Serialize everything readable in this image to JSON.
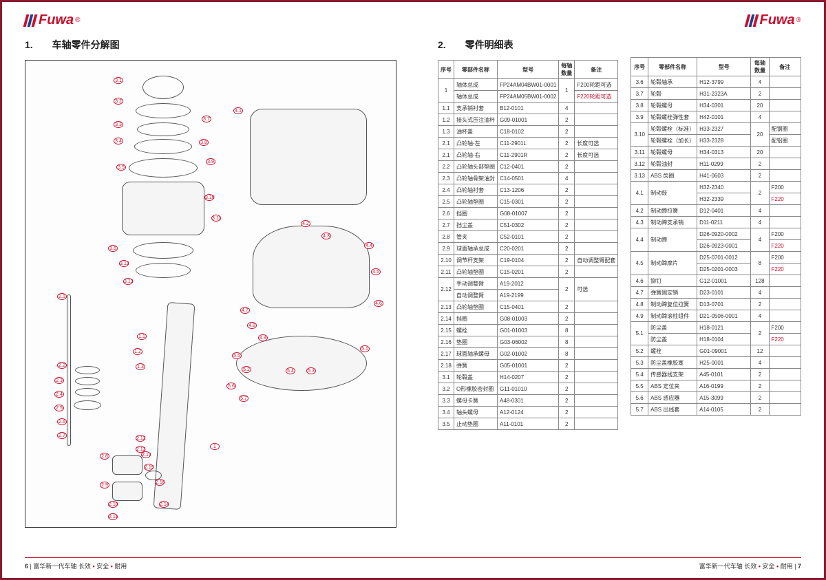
{
  "brand": {
    "name": "Fuwa",
    "reg": "®"
  },
  "section1": {
    "num": "1.",
    "title": "车轴零件分解图"
  },
  "section2": {
    "num": "2.",
    "title": "零件明细表"
  },
  "table_headers": {
    "seq": "序号",
    "name": "零部件名称",
    "model": "型号",
    "qty_l1": "每轴",
    "qty_l2": "数量",
    "remark": "备注"
  },
  "callouts": [
    "3.1",
    "3.2",
    "3.3",
    "3.4",
    "3.5",
    "3.6",
    "3.7",
    "3.8",
    "3.9",
    "3.10",
    "3.11",
    "3.12",
    "3.13",
    "4.1",
    "4.2",
    "4.3",
    "4.4",
    "4.5",
    "4.6",
    "4.7",
    "4.8",
    "4.9",
    "5.1",
    "5.2",
    "5.3",
    "5.4",
    "5.5",
    "5.6",
    "5.7",
    "2.1",
    "2.2",
    "2.3",
    "2.4",
    "2.5",
    "2.6",
    "2.7",
    "2.8",
    "2.9",
    "2.10",
    "2.11",
    "2.12",
    "2.13",
    "2.14",
    "2.15",
    "2.16",
    "2.17",
    "1",
    "1.1",
    "1.2",
    "1.3"
  ],
  "left_table": [
    {
      "s": "1",
      "n": "轴体总成",
      "m": "FP24AM04BW01-0001",
      "q": "1",
      "r": "F200轮距可选",
      "rowspan_s": 2,
      "rowspan_q": 2
    },
    {
      "n": "轴体总成",
      "m": "FP24AM05BW01-0002",
      "r": "F220轮距可选",
      "rcolor": true
    },
    {
      "s": "1.1",
      "n": "支承销衬套",
      "m": "B12-0101",
      "q": "4",
      "r": ""
    },
    {
      "s": "1.2",
      "n": "接头式压注油杯",
      "m": "G09-01001",
      "q": "2",
      "r": ""
    },
    {
      "s": "1.3",
      "n": "油杯盖",
      "m": "C18-0102",
      "q": "2",
      "r": ""
    },
    {
      "s": "2.1",
      "n": "凸轮轴-左",
      "m": "C11-2901L",
      "q": "2",
      "r": "长度可选"
    },
    {
      "s": "2.1",
      "n": "凸轮轴-右",
      "m": "C11-2901R",
      "q": "2",
      "r": "长度可选"
    },
    {
      "s": "2.2",
      "n": "凸轮轴头部垫圈",
      "m": "C12-0401",
      "q": "2",
      "r": ""
    },
    {
      "s": "2.3",
      "n": "凸轮轴骨架油封",
      "m": "C14-0501",
      "q": "4",
      "r": ""
    },
    {
      "s": "2.4",
      "n": "凸轮轴衬套",
      "m": "C13-1206",
      "q": "2",
      "r": ""
    },
    {
      "s": "2.5",
      "n": "凸轮轴垫圈",
      "m": "C15-0301",
      "q": "2",
      "r": ""
    },
    {
      "s": "2.6",
      "n": "挡圈",
      "m": "G08-01007",
      "q": "2",
      "r": ""
    },
    {
      "s": "2.7",
      "n": "挡尘盖",
      "m": "C51-0302",
      "q": "2",
      "r": ""
    },
    {
      "s": "2.8",
      "n": "管夹",
      "m": "C52-0101",
      "q": "2",
      "r": ""
    },
    {
      "s": "2.9",
      "n": "球面轴承总成",
      "m": "C20-0201",
      "q": "2",
      "r": ""
    },
    {
      "s": "2.10",
      "n": "调节杆支架",
      "m": "C19-0104",
      "q": "2",
      "r": "自动调整臂配套"
    },
    {
      "s": "2.11",
      "n": "凸轮轴垫圈",
      "m": "C15-0201",
      "q": "2",
      "r": ""
    },
    {
      "s": "2.12",
      "n": "手动调整臂",
      "m": "A19-2012",
      "q": "2",
      "r": "可选",
      "rowspan_s": 2,
      "rowspan_q": 2,
      "rowspan_r": 2
    },
    {
      "n": "自动调整臂",
      "m": "A19-2199"
    },
    {
      "s": "2.13",
      "n": "凸轮轴垫圈",
      "m": "C15-0401",
      "q": "2",
      "r": ""
    },
    {
      "s": "2.14",
      "n": "挡圈",
      "m": "G08-01003",
      "q": "2",
      "r": ""
    },
    {
      "s": "2.15",
      "n": "螺栓",
      "m": "G01-01003",
      "q": "8",
      "r": ""
    },
    {
      "s": "2.16",
      "n": "垫圈",
      "m": "G03-06002",
      "q": "8",
      "r": ""
    },
    {
      "s": "2.17",
      "n": "球面轴承螺母",
      "m": "G02-01002",
      "q": "8",
      "r": ""
    },
    {
      "s": "2.18",
      "n": "弹簧",
      "m": "G05-01001",
      "q": "2",
      "r": ""
    },
    {
      "s": "3.1",
      "n": "轮毂盖",
      "m": "H14-0207",
      "q": "2",
      "r": ""
    },
    {
      "s": "3.2",
      "n": "O形橡胶密封圈",
      "m": "G11-01010",
      "q": "2",
      "r": ""
    },
    {
      "s": "3.3",
      "n": "螺母卡簧",
      "m": "A48-0301",
      "q": "2",
      "r": ""
    },
    {
      "s": "3.4",
      "n": "轴头螺母",
      "m": "A12-0124",
      "q": "2",
      "r": ""
    },
    {
      "s": "3.5",
      "n": "止动垫圈",
      "m": "A11-0101",
      "q": "2",
      "r": ""
    }
  ],
  "right_table": [
    {
      "s": "3.6",
      "n": "轮毂轴承",
      "m": "H12-3799",
      "q": "4",
      "r": ""
    },
    {
      "s": "3.7",
      "n": "轮毂",
      "m": "H31-2323A",
      "q": "2",
      "r": ""
    },
    {
      "s": "3.8",
      "n": "轮毂螺母",
      "m": "H34-0301",
      "q": "20",
      "r": ""
    },
    {
      "s": "3.9",
      "n": "轮毂螺栓弹性套",
      "m": "H42-0101",
      "q": "4",
      "r": ""
    },
    {
      "s": "3.10",
      "n": "轮毂螺栓（标准）",
      "m": "H33-2327",
      "q": "20",
      "r": "配钢圈",
      "rowspan_s": 2,
      "rowspan_q": 2
    },
    {
      "n": "轮毂螺栓（加长）",
      "m": "H33-2328",
      "r": "配铝圈"
    },
    {
      "s": "3.11",
      "n": "轮毂螺母",
      "m": "H34-0313",
      "q": "20",
      "r": ""
    },
    {
      "s": "3.12",
      "n": "轮毂油封",
      "m": "H11-0299",
      "q": "2",
      "r": ""
    },
    {
      "s": "3.13",
      "n": "ABS 齿圈",
      "m": "H41-0603",
      "q": "2",
      "r": ""
    },
    {
      "s": "4.1",
      "n": "制动鼓",
      "m": "H32-2340",
      "q": "2",
      "r": "F200",
      "rowspan_s": 2,
      "rowspan_n": 2,
      "rowspan_q": 2
    },
    {
      "m": "H32-2339",
      "r": "F220",
      "rcolor": true
    },
    {
      "s": "4.2",
      "n": "制动蹄拉簧",
      "m": "D12-0401",
      "q": "4",
      "r": ""
    },
    {
      "s": "4.3",
      "n": "制动蹄支承销",
      "m": "D11-0211",
      "q": "4",
      "r": ""
    },
    {
      "s": "4.4",
      "n": "制动蹄",
      "m": "D26-0920-0002",
      "q": "4",
      "r": "F200",
      "rowspan_s": 2,
      "rowspan_n": 2,
      "rowspan_q": 2
    },
    {
      "m": "D26-0923-0001",
      "r": "F220",
      "rcolor": true
    },
    {
      "s": "4.5",
      "n": "制动蹄摩片",
      "m": "D25-0701-0012",
      "q": "8",
      "r": "F200",
      "rowspan_s": 2,
      "rowspan_n": 2,
      "rowspan_q": 2
    },
    {
      "m": "D25-0201-0003",
      "r": "F220",
      "rcolor": true
    },
    {
      "s": "4.6",
      "n": "铆钉",
      "m": "G12-01001",
      "q": "128",
      "r": ""
    },
    {
      "s": "4.7",
      "n": "弹簧固定销",
      "m": "D23-0101",
      "q": "4",
      "r": ""
    },
    {
      "s": "4.8",
      "n": "制动蹄复位拉簧",
      "m": "D13-0701",
      "q": "2",
      "r": ""
    },
    {
      "s": "4.9",
      "n": "制动蹄滚柱组件",
      "m": "D21-0506-0001",
      "q": "4",
      "r": ""
    },
    {
      "s": "5.1",
      "n": "防尘盖",
      "m": "H18-0121",
      "q": "2",
      "r": "F200",
      "rowspan_s": 2,
      "rowspan_q": 2
    },
    {
      "n": "防尘盖",
      "m": "H18-0104",
      "r": "F220",
      "rcolor": true
    },
    {
      "s": "5.2",
      "n": "螺栓",
      "m": "G01-09001",
      "q": "12",
      "r": ""
    },
    {
      "s": "5.3",
      "n": "防尘盖橡胶塞",
      "m": "H25-0001",
      "q": "4",
      "r": ""
    },
    {
      "s": "5.4",
      "n": "传感器线支架",
      "m": "A45-0101",
      "q": "2",
      "r": ""
    },
    {
      "s": "5.5",
      "n": "ABS 定位夹",
      "m": "A16-0199",
      "q": "2",
      "r": ""
    },
    {
      "s": "5.6",
      "n": "ABS 感应器",
      "m": "A15-3099",
      "q": "2",
      "r": ""
    },
    {
      "s": "5.7",
      "n": "ABS 出线套",
      "m": "A14-0105",
      "q": "2",
      "r": ""
    }
  ],
  "footer": {
    "left_page": "6",
    "right_page": "7",
    "brand_line": "富华新一代车轴",
    "s1": "长效",
    "s2": "安全",
    "s3": "耐用"
  },
  "col_widths": {
    "seq": 26,
    "name": 66,
    "model": 88,
    "qty": 28,
    "remark": 56
  }
}
